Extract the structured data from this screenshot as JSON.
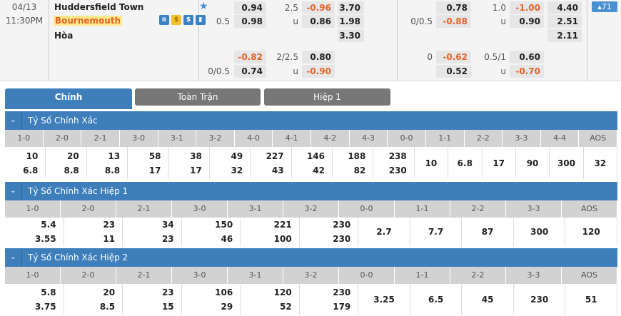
{
  "match": {
    "date": "04/13",
    "time": "11:30PM",
    "home": "Huddersfield Town",
    "away": "Bournemouth",
    "draw": "Hòa",
    "more_count": "▴71"
  },
  "odds_ft": {
    "hdp_line": "0.5",
    "hdp_home": "0.94",
    "hdp_away": "0.98",
    "ou_line": "2.5",
    "ou_over": "-0.96",
    "ou_under_label": "u",
    "ou_under": "0.86",
    "x12_home": "3.70",
    "x12_away": "1.98",
    "x12_draw": "3.30",
    "hdp2_line": "0/0.5",
    "hdp2_home": "-0.82",
    "hdp2_away": "0.74",
    "ou2_line": "2/2.5",
    "ou2_over": "0.80",
    "ou2_under_label": "u",
    "ou2_under": "-0.90"
  },
  "odds_h1": {
    "hdp_line": "0/0.5",
    "hdp_home": "0.78",
    "hdp_away": "-0.88",
    "ou_line": "1.0",
    "ou_over": "-1.00",
    "ou_under_label": "u",
    "ou_under": "0.90",
    "x12_home": "4.40",
    "x12_away": "2.51",
    "x12_draw": "2.11",
    "hdp2_line": "0",
    "hdp2_home": "-0.62",
    "hdp2_away": "0.52",
    "ou2_line": "0.5/1",
    "ou2_over": "0.60",
    "ou2_under_label": "u",
    "ou2_under": "-0.70"
  },
  "tabs": [
    "Chính",
    "Toàn Trận",
    "Hiệp 1"
  ],
  "sections": [
    {
      "title": "Tỷ Số Chính Xác",
      "headers": [
        "1-0",
        "2-0",
        "2-1",
        "3-0",
        "3-1",
        "3-2",
        "4-0",
        "4-1",
        "4-2",
        "4-3",
        "0-0",
        "1-1",
        "2-2",
        "3-3",
        "4-4",
        "AOS"
      ],
      "values": [
        [
          "10",
          "6.8"
        ],
        [
          "20",
          "8.8"
        ],
        [
          "13",
          "8.8"
        ],
        [
          "58",
          "17"
        ],
        [
          "38",
          "17"
        ],
        [
          "49",
          "32"
        ],
        [
          "227",
          "43"
        ],
        [
          "146",
          "42"
        ],
        [
          "188",
          "82"
        ],
        [
          "238",
          "230"
        ],
        [
          "10"
        ],
        [
          "6.8"
        ],
        [
          "17"
        ],
        [
          "90"
        ],
        [
          "300"
        ],
        [
          "32"
        ]
      ]
    },
    {
      "title": "Tỷ Số Chính Xác Hiệp 1",
      "headers": [
        "1-0",
        "2-0",
        "2-1",
        "3-0",
        "3-1",
        "3-2",
        "0-0",
        "1-1",
        "2-2",
        "3-3",
        "AOS"
      ],
      "values": [
        [
          "5.4",
          "3.55"
        ],
        [
          "23",
          "11"
        ],
        [
          "34",
          "23"
        ],
        [
          "150",
          "46"
        ],
        [
          "221",
          "100"
        ],
        [
          "230",
          "230"
        ],
        [
          "2.7"
        ],
        [
          "7.7"
        ],
        [
          "87"
        ],
        [
          "300"
        ],
        [
          "120"
        ]
      ]
    },
    {
      "title": "Tỷ Số Chính Xác Hiệp 2",
      "headers": [
        "1-0",
        "2-0",
        "2-1",
        "3-0",
        "3-1",
        "3-2",
        "0-0",
        "1-1",
        "2-2",
        "3-3",
        "AOS"
      ],
      "values": [
        [
          "5.8",
          "3.75"
        ],
        [
          "20",
          "8.5"
        ],
        [
          "23",
          "15"
        ],
        [
          "106",
          "29"
        ],
        [
          "120",
          "52"
        ],
        [
          "230",
          "179"
        ],
        [
          "3.25"
        ],
        [
          "6.5"
        ],
        [
          "45"
        ],
        [
          "230"
        ],
        [
          "51"
        ]
      ]
    }
  ],
  "colors": {
    "accent": "#3d7ebb",
    "negative": "#e8632a",
    "tab_inactive": "#777777"
  }
}
